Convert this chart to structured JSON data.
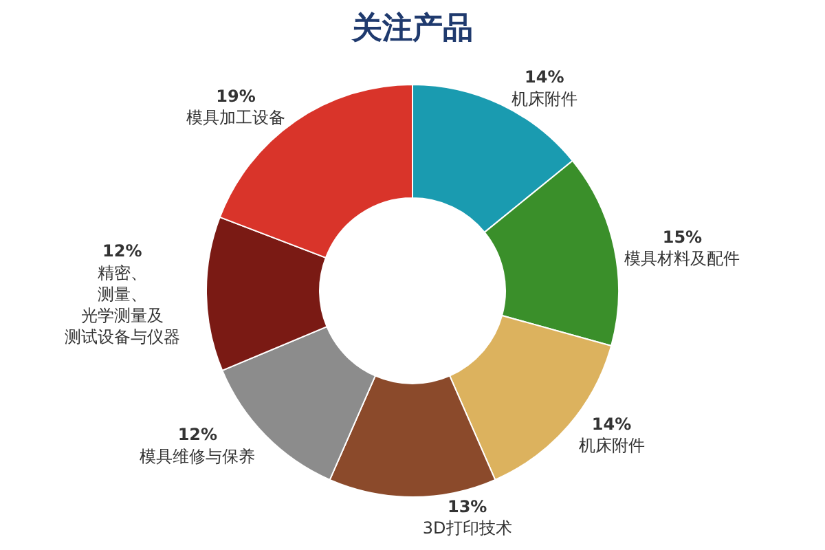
{
  "chart_data": {
    "type": "donut",
    "title": "关注产品",
    "categories": [
      "机床附件",
      "模具材料及配件",
      "机床附件",
      "3D打印技术",
      "模具维修与保养",
      "精密、测量、光学测量及测试设备与仪器",
      "模具加工设备"
    ],
    "values": [
      14,
      15,
      14,
      13,
      12,
      12,
      19
    ],
    "value_labels": [
      "14%",
      "15%",
      "14%",
      "13%",
      "12%",
      "12%",
      "19%"
    ],
    "colors": [
      "#1a9bb0",
      "#3a8f2a",
      "#dcb25e",
      "#8b4a2b",
      "#8c8c8c",
      "#7a1a14",
      "#d9342a"
    ],
    "legend": false
  }
}
